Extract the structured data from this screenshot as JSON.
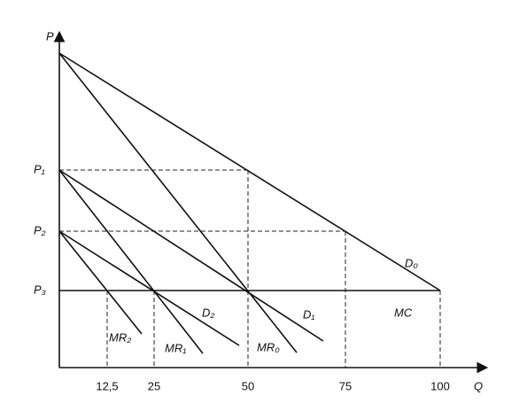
{
  "y_axis": {
    "label": "P",
    "ticks": [
      "P₁",
      "P₂",
      "P₃"
    ]
  },
  "x_axis": {
    "label": "Q",
    "ticks": [
      "12,5",
      "25",
      "50",
      "75",
      "100"
    ]
  },
  "curves": {
    "D0": "D₀",
    "D1": "D₁",
    "D2": "D₂",
    "MR0": "MR₀",
    "MR1": "MR₁",
    "MR2": "MR₂",
    "MC": "MC"
  }
}
